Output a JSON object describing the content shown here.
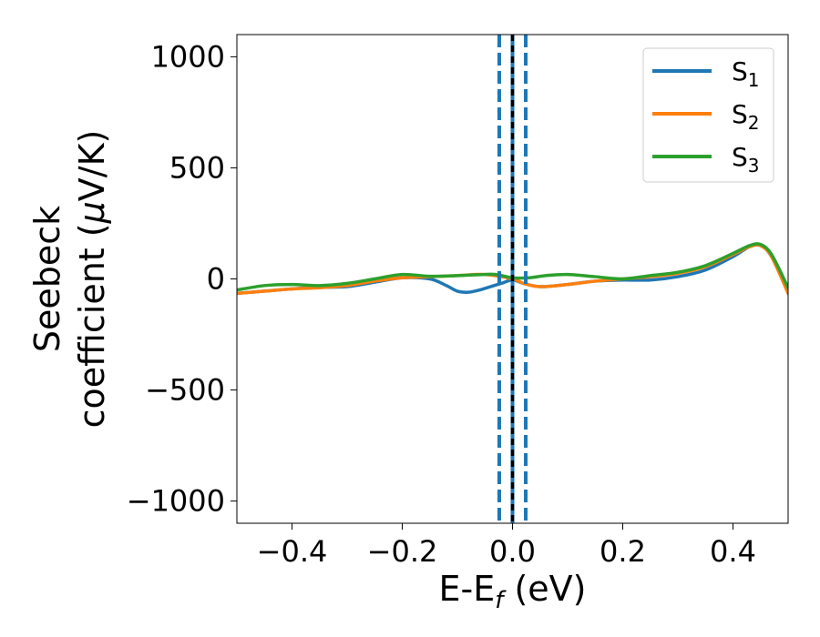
{
  "chart_data": {
    "type": "line",
    "xlabel": "E-E",
    "xlabel_sub": "f",
    "xlabel_suffix": " (eV)",
    "ylabel_line1": "Seebeck",
    "ylabel_line2_prefix": "coefficient  (",
    "ylabel_mu": "μ",
    "ylabel_line2_suffix": "V/K)",
    "xlim": [
      -0.5,
      0.5
    ],
    "ylim": [
      -1100,
      1100
    ],
    "xticks": [
      -0.4,
      -0.2,
      0.0,
      0.2,
      0.4
    ],
    "xtick_labels": [
      "−0.4",
      "−0.2",
      "0.0",
      "0.2",
      "0.4"
    ],
    "yticks": [
      -1000,
      -500,
      0,
      500,
      1000
    ],
    "ytick_labels": [
      "−1000",
      "−500",
      "0",
      "500",
      "1000"
    ],
    "grid": false,
    "legend_position": "top-right",
    "vlines": [
      {
        "x": -0.024,
        "color": "#1f77b4",
        "style": "dashed"
      },
      {
        "x": 0.0,
        "color": "#1f77b4",
        "style": "solid"
      },
      {
        "x": 0.0,
        "color": "#000000",
        "style": "dashed"
      },
      {
        "x": 0.024,
        "color": "#1f77b4",
        "style": "dashed"
      }
    ],
    "series": [
      {
        "name": "S",
        "subscript": "1",
        "color": "#1f77b4",
        "x": [
          -0.5,
          -0.45,
          -0.4,
          -0.35,
          -0.3,
          -0.25,
          -0.2,
          -0.15,
          -0.12,
          -0.1,
          -0.08,
          -0.06,
          -0.04,
          -0.02,
          0.0,
          0.02,
          0.05,
          0.1,
          0.15,
          0.2,
          0.25,
          0.3,
          0.35,
          0.4,
          0.43,
          0.45,
          0.47,
          0.5
        ],
        "y": [
          -65,
          -55,
          -45,
          -38,
          -35,
          -15,
          5,
          0,
          -30,
          -55,
          -60,
          -50,
          -35,
          -20,
          -5,
          -20,
          -35,
          -25,
          -10,
          -5,
          -5,
          10,
          40,
          100,
          145,
          150,
          100,
          -60
        ]
      },
      {
        "name": "S",
        "subscript": "2",
        "color": "#ff7f0e",
        "x": [
          -0.5,
          -0.45,
          -0.4,
          -0.35,
          -0.3,
          -0.25,
          -0.2,
          -0.15,
          -0.1,
          -0.05,
          0.0,
          0.02,
          0.05,
          0.1,
          0.15,
          0.2,
          0.25,
          0.3,
          0.35,
          0.4,
          0.43,
          0.45,
          0.47,
          0.5
        ],
        "y": [
          -65,
          -55,
          -45,
          -40,
          -30,
          -10,
          5,
          10,
          15,
          20,
          0,
          -20,
          -35,
          -25,
          -10,
          0,
          10,
          25,
          55,
          110,
          145,
          150,
          100,
          -65
        ]
      },
      {
        "name": "S",
        "subscript": "3",
        "color": "#2ca02c",
        "x": [
          -0.5,
          -0.45,
          -0.4,
          -0.35,
          -0.3,
          -0.25,
          -0.2,
          -0.15,
          -0.1,
          -0.05,
          -0.03,
          0.0,
          0.03,
          0.06,
          0.1,
          0.15,
          0.2,
          0.25,
          0.3,
          0.35,
          0.4,
          0.43,
          0.45,
          0.47,
          0.5
        ],
        "y": [
          -50,
          -30,
          -25,
          -30,
          -20,
          0,
          20,
          12,
          15,
          20,
          20,
          5,
          5,
          15,
          20,
          10,
          0,
          15,
          30,
          60,
          115,
          150,
          155,
          110,
          -40
        ]
      }
    ]
  }
}
